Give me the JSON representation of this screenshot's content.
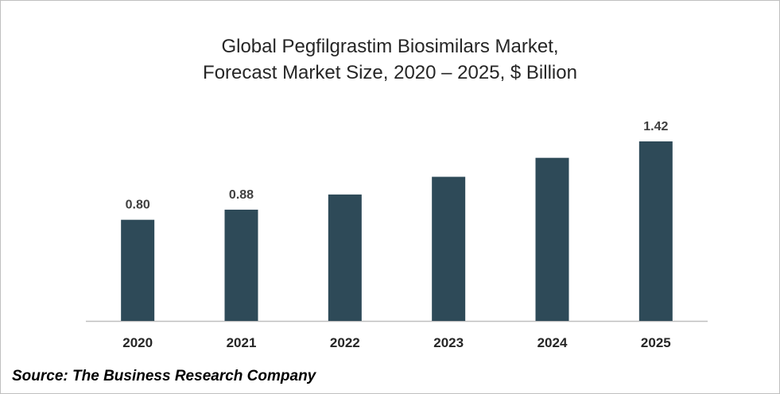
{
  "chart_data": {
    "type": "bar",
    "title_line1": "Global Pegfilgrastim Biosimilars Market,",
    "title_line2": "Forecast Market Size, 2020 – 2025, $ Billion",
    "xlabel": "",
    "ylabel": "",
    "categories": [
      "2020",
      "2021",
      "2022",
      "2023",
      "2024",
      "2025"
    ],
    "values": [
      0.8,
      0.88,
      1.0,
      1.14,
      1.29,
      1.42
    ],
    "data_labels": [
      "0.80",
      "0.88",
      "",
      "",
      "",
      "1.42"
    ],
    "ylim": [
      0,
      1.42
    ],
    "grid": false,
    "legend": "none",
    "bar_color": "#2e4a58"
  },
  "source": "Source: The Business Research Company"
}
